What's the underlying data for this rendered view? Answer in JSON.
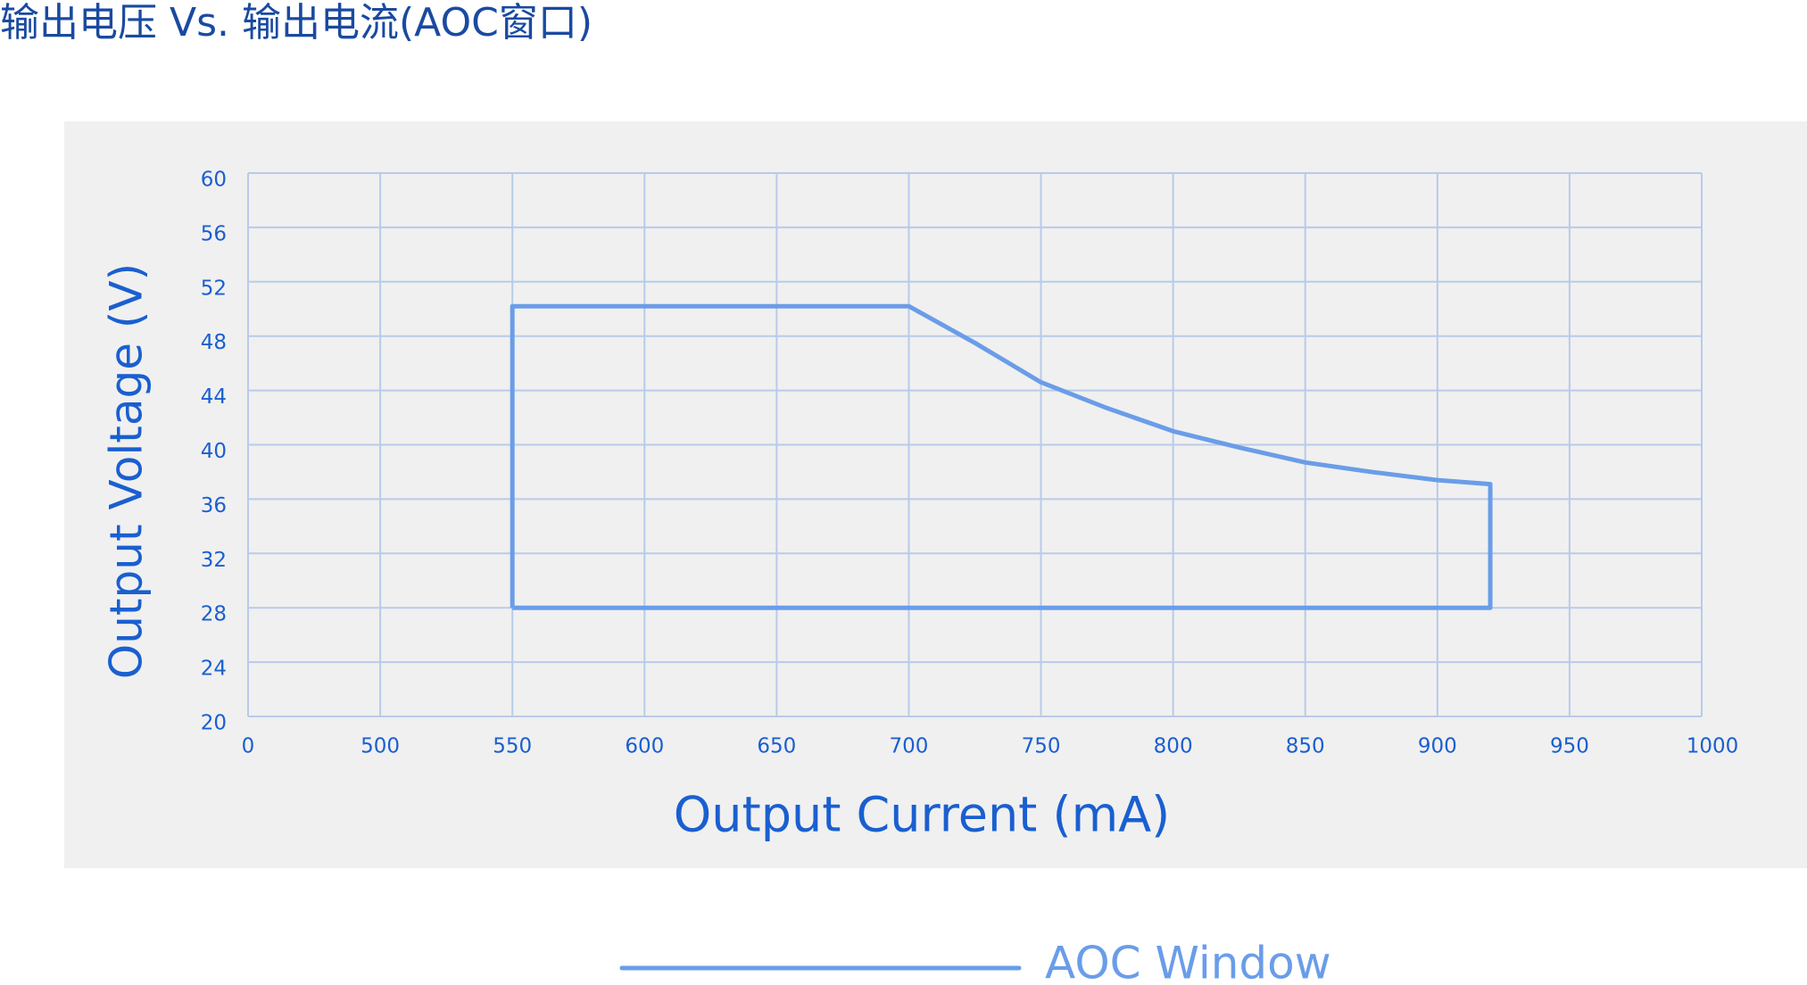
{
  "chart_data": {
    "type": "line",
    "title": "输出电压 Vs. 输出电流(AOC窗口)",
    "x_label": "Output Current (mA)",
    "y_label": "Output  Voltage (V)",
    "xlim": [
      0,
      1000
    ],
    "ylim": [
      20,
      60
    ],
    "xticks": [
      0,
      500,
      550,
      600,
      650,
      700,
      750,
      800,
      850,
      900,
      950,
      1000
    ],
    "yticks": [
      20,
      24,
      28,
      32,
      36,
      40,
      44,
      48,
      52,
      56,
      60
    ],
    "grid": true,
    "legend": "bottom",
    "series": [
      {
        "name": "AOC Window",
        "color": "#6a9de8",
        "x": [
          550,
          550,
          700,
          725,
          750,
          775,
          800,
          825,
          850,
          875,
          900,
          920,
          920,
          550
        ],
        "values": [
          28,
          50.2,
          50.2,
          47.5,
          44.6,
          42.7,
          41.0,
          39.8,
          38.7,
          38.0,
          37.4,
          37.1,
          28,
          28
        ]
      }
    ]
  }
}
